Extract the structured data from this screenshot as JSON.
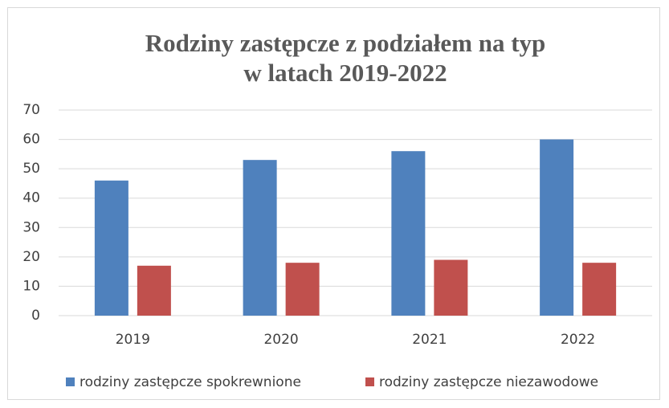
{
  "chart_data": {
    "type": "bar",
    "title": [
      "Rodziny zastępcze z podziałem na typ",
      "w latach 2019-2022"
    ],
    "categories": [
      "2019",
      "2020",
      "2021",
      "2022"
    ],
    "series": [
      {
        "name": "rodziny zastępcze spokrewnione",
        "color": "#4f81bd",
        "values": [
          46,
          53,
          56,
          60
        ]
      },
      {
        "name": "rodziny zastępcze niezawodowe",
        "color": "#c0504d",
        "values": [
          17,
          18,
          19,
          18
        ]
      }
    ],
    "ylim": [
      0,
      70
    ],
    "yticks": [
      0,
      10,
      20,
      30,
      40,
      50,
      60,
      70
    ],
    "grid": true,
    "legend": "bottom"
  }
}
